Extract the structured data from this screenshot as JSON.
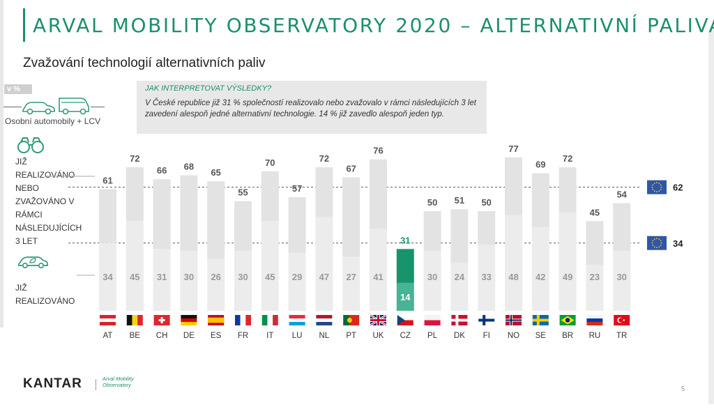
{
  "header": {
    "title": "ARVAL MOBILITY OBSERVATORY 2020 – ALTERNATIVNÍ PALIVA",
    "subtitle": "Zvažování technologií alternativních paliv"
  },
  "unit_badge": "v %",
  "vehicles_label": "Osobní automobily + LCV",
  "info": {
    "heading": "JAK INTERPRETOVAT VÝSLEDKY?",
    "text": "V České republice již 31 % společností realizovalo nebo zvažovalo v rámci následujících 3 let zavedení alespoň jedné alternativní technologie. 14 % již zavedlo alespoň jeden typ."
  },
  "legend": {
    "considered_lines": [
      "JIŽ",
      "REALIZOVÁNO",
      "NEBO",
      "ZVAŽOVÁNO V",
      "RÁMCI",
      "NÁSLEDUJÍCÍCH",
      "3 LET"
    ],
    "implemented_lines": [
      "JIŽ",
      "REALIZOVÁNO"
    ]
  },
  "colors": {
    "accent": "#1b8f6d",
    "bar_total": "#e3e3e3",
    "bar_implemented": "#ececec",
    "cz_total": "#18946c",
    "cz_implemented": "#46b495",
    "eu": "#2f56a9",
    "eu_star": "#f4d31c"
  },
  "chart_data": {
    "type": "bar",
    "categories": [
      "AT",
      "BE",
      "CH",
      "DE",
      "ES",
      "FR",
      "IT",
      "LU",
      "NL",
      "PT",
      "UK",
      "CZ",
      "PL",
      "DK",
      "FI",
      "NO",
      "SE",
      "BR",
      "RU",
      "TR"
    ],
    "series": [
      {
        "values": [
          61,
          72,
          66,
          68,
          65,
          55,
          70,
          57,
          72,
          67,
          76,
          31,
          50,
          51,
          50,
          77,
          69,
          72,
          45,
          54
        ]
      },
      {
        "values": [
          34,
          45,
          31,
          30,
          26,
          30,
          45,
          29,
          47,
          27,
          41,
          14,
          30,
          24,
          33,
          48,
          42,
          49,
          23,
          30
        ]
      }
    ],
    "highlight_category": "CZ",
    "reference_lines": [
      {
        "label": "62",
        "value": 62
      },
      {
        "label": "34",
        "value": 34
      }
    ]
  },
  "footer": {
    "brand": "KANTAR",
    "logo_line1": "Arval Mobility",
    "logo_line2": "Observatory",
    "page": "5"
  }
}
